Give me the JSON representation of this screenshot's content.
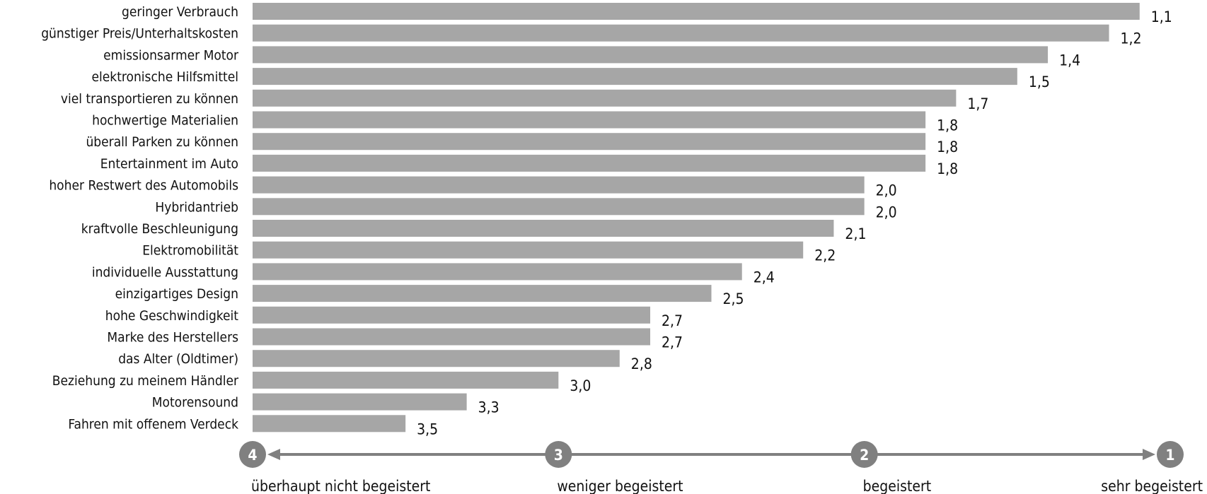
{
  "colors": {
    "bar": "#a6a6a6",
    "axis": "#808080",
    "text": "#111111"
  },
  "chart_data": {
    "type": "bar",
    "orientation": "horizontal",
    "categories": [
      "geringer Verbrauch",
      "günstiger Preis/Unterhaltskosten",
      "emissionsarmer Motor",
      "elektronische Hilfsmittel",
      "viel transportieren zu können",
      "hochwertige Materialien",
      "überall Parken zu können",
      "Entertainment im Auto",
      "hoher Restwert des Automobils",
      "Hybridantrieb",
      "kraftvolle Beschleunigung",
      "Elektromobilität",
      "individuelle Ausstattung",
      "einzigartiges Design",
      "hohe Geschwindigkeit",
      "Marke des Herstellers",
      "das Alter (Oldtimer)",
      "Beziehung zu meinem Händler",
      "Motorensound",
      "Fahren mit offenem Verdeck"
    ],
    "values": [
      1.1,
      1.2,
      1.4,
      1.5,
      1.7,
      1.8,
      1.8,
      1.8,
      2.0,
      2.0,
      2.1,
      2.2,
      2.4,
      2.5,
      2.7,
      2.7,
      2.8,
      3.0,
      3.3,
      3.5
    ],
    "value_labels": [
      "1,1",
      "1,2",
      "1,4",
      "1,5",
      "1,7",
      "1,8",
      "1,8",
      "1,8",
      "2,0",
      "2,0",
      "2,1",
      "2,2",
      "2,4",
      "2,5",
      "2,7",
      "2,7",
      "2,8",
      "3,0",
      "3,3",
      "3,5"
    ],
    "xlim": [
      4,
      1
    ],
    "scale": [
      {
        "value": 4,
        "num": "4",
        "label": "überhaupt nicht begeistert"
      },
      {
        "value": 3,
        "num": "3",
        "label": "weniger begeistert"
      },
      {
        "value": 2,
        "num": "2",
        "label": "begeistert"
      },
      {
        "value": 1,
        "num": "1",
        "label": "sehr begeistert"
      }
    ],
    "title": "",
    "xlabel": "",
    "ylabel": "",
    "grid": false,
    "legend": "none"
  }
}
